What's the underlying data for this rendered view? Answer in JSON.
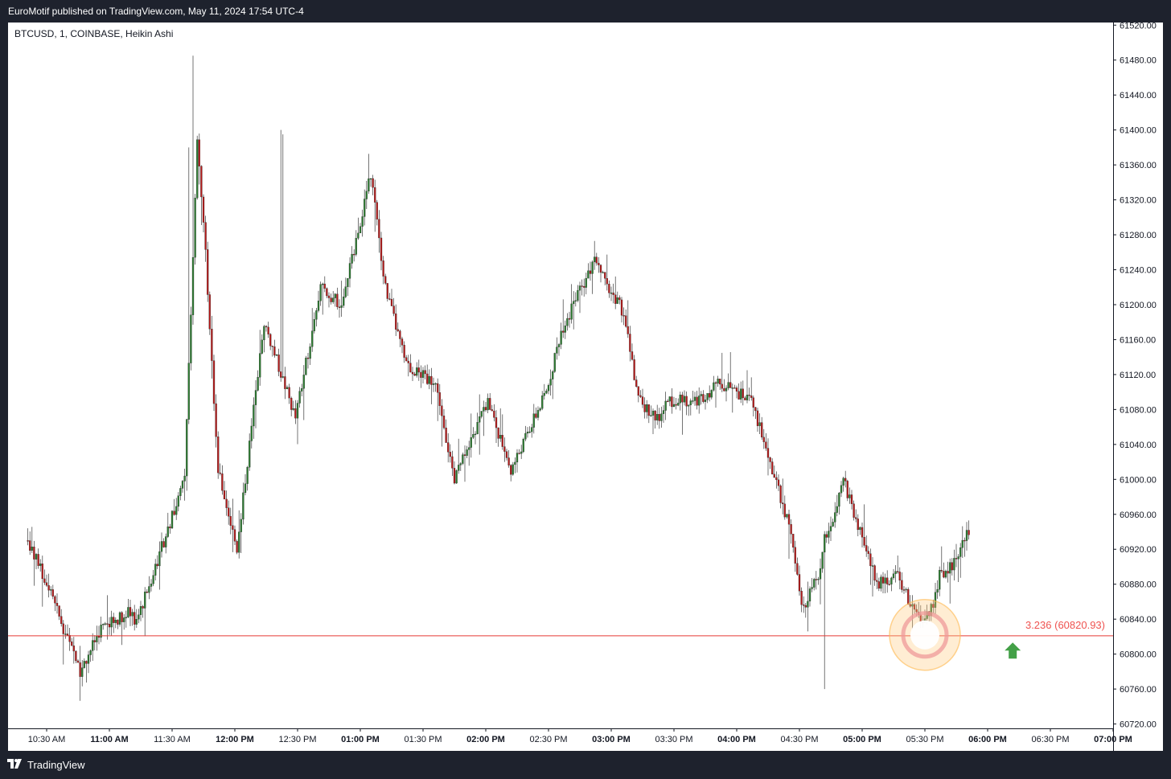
{
  "header": {
    "published_text": "EuroMotif published on TradingView.com, May 11, 2024 17:54 UTC-4"
  },
  "footer": {
    "brand": "TradingView"
  },
  "chart_data": {
    "type": "candlestick",
    "title": "BTCUSD, 1, COINBASE, Heikin Ashi",
    "y_axis": {
      "ticks": [
        61520,
        61480,
        61440,
        61400,
        61360,
        61320,
        61280,
        61240,
        61200,
        61160,
        61120,
        61080,
        61040,
        61000,
        60960,
        60920,
        60880,
        60840,
        60800,
        60760,
        60720
      ],
      "tick_labels": [
        "61520.00",
        "61480.00",
        "61440.00",
        "61400.00",
        "61360.00",
        "61320.00",
        "61280.00",
        "61240.00",
        "61200.00",
        "61160.00",
        "61120.00",
        "61080.00",
        "61040.00",
        "61000.00",
        "60960.00",
        "60920.00",
        "60880.00",
        "60840.00",
        "60800.00",
        "60760.00",
        "60720.00"
      ],
      "ylim": [
        60715,
        61523
      ]
    },
    "x_axis": {
      "tick_labels": [
        "10:30 AM",
        "11:00 AM",
        "11:30 AM",
        "12:00 PM",
        "12:30 PM",
        "01:00 PM",
        "01:30 PM",
        "02:00 PM",
        "02:30 PM",
        "03:00 PM",
        "03:30 PM",
        "04:00 PM",
        "04:30 PM",
        "05:00 PM",
        "05:30 PM",
        "06:00 PM",
        "06:30 PM",
        "07:00 PM"
      ],
      "bold_labels": [
        "11:00 AM",
        "12:00 PM",
        "01:00 PM",
        "02:00 PM",
        "03:00 PM",
        "04:00 PM",
        "05:00 PM",
        "06:00 PM",
        "07:00 PM"
      ],
      "minutes_from_1030": [
        0,
        30,
        60,
        90,
        120,
        150,
        180,
        210,
        240,
        270,
        300,
        330,
        360,
        390,
        420,
        450,
        480,
        510
      ]
    },
    "colors": {
      "up": "#2e7d32",
      "down": "#b71c1c",
      "wick": "#555555",
      "level": "#e53935"
    },
    "key_points": {
      "minutes": [
        -9,
        0,
        16,
        26,
        41,
        42,
        66,
        72,
        76,
        82,
        91,
        104,
        119,
        131,
        141,
        155,
        162,
        172,
        186,
        195,
        211,
        222,
        239,
        246,
        262,
        276,
        283,
        292,
        298,
        311,
        322,
        337,
        356,
        361,
        369,
        372,
        377,
        381,
        389,
        397,
        407,
        415,
        420,
        424,
        427,
        433,
        441
      ],
      "prices": [
        60930,
        60880,
        60780,
        60830,
        60850,
        60830,
        61000,
        61390,
        61260,
        61010,
        60920,
        61180,
        61070,
        61220,
        61200,
        61350,
        61220,
        61130,
        61110,
        61000,
        61090,
        61010,
        61100,
        61170,
        61250,
        61190,
        61090,
        61070,
        61090,
        61090,
        61110,
        61090,
        60940,
        60850,
        60890,
        60930,
        60960,
        61000,
        60940,
        60880,
        60890,
        60845,
        60840,
        60860,
        60890,
        60900,
        60940
      ]
    },
    "level": {
      "price": 60820.93,
      "label": "3.236 (60820.93)"
    },
    "highlight": {
      "minute": 420,
      "price": 60822
    },
    "signal_arrow": {
      "minute": 462,
      "price": 60805,
      "direction": "up"
    }
  }
}
